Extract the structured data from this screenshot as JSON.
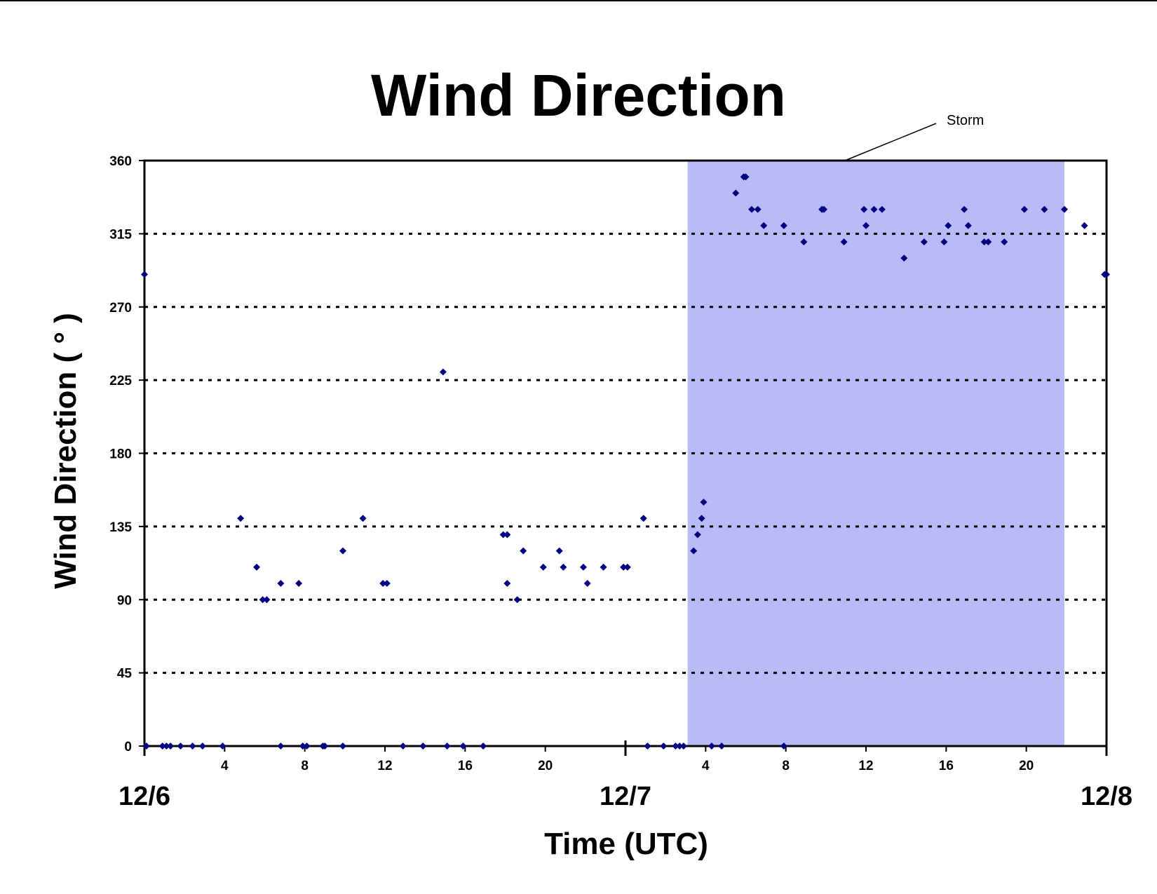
{
  "chart_data": {
    "type": "scatter",
    "title": "Wind Direction",
    "xlabel": "Time (UTC)",
    "ylabel": "Wind Direction ( ° )",
    "ylim": [
      0,
      360
    ],
    "yticks": [
      "0",
      "45",
      "90",
      "135",
      "180",
      "225",
      "270",
      "315",
      "360"
    ],
    "xlim_hours": [
      0,
      48
    ],
    "xticks": [
      {
        "hour": 4,
        "label": "4"
      },
      {
        "hour": 8,
        "label": "8"
      },
      {
        "hour": 12,
        "label": "12"
      },
      {
        "hour": 16,
        "label": "16"
      },
      {
        "hour": 20,
        "label": "20"
      },
      {
        "hour": 28,
        "label": "4"
      },
      {
        "hour": 32,
        "label": "8"
      },
      {
        "hour": 36,
        "label": "12"
      },
      {
        "hour": 40,
        "label": "16"
      },
      {
        "hour": 44,
        "label": "20"
      }
    ],
    "date_labels": [
      {
        "hour": 0,
        "label": "12/6"
      },
      {
        "hour": 24,
        "label": "12/7"
      },
      {
        "hour": 48,
        "label": "12/8"
      }
    ],
    "grid": "horizontal dotted",
    "marker_color": "#000080",
    "shaded_region": {
      "label": "Storm",
      "start_hour": 27.1,
      "end_hour": 45.9,
      "color": "#babaf8"
    },
    "points": [
      [
        0.0,
        290
      ],
      [
        0.1,
        0
      ],
      [
        0.9,
        0
      ],
      [
        1.1,
        0
      ],
      [
        1.3,
        0
      ],
      [
        1.8,
        0
      ],
      [
        2.4,
        0
      ],
      [
        2.9,
        0
      ],
      [
        3.9,
        0
      ],
      [
        4.8,
        140
      ],
      [
        5.6,
        110
      ],
      [
        5.9,
        90
      ],
      [
        6.1,
        90
      ],
      [
        6.8,
        0
      ],
      [
        6.8,
        100
      ],
      [
        7.7,
        100
      ],
      [
        7.9,
        0
      ],
      [
        8.1,
        0
      ],
      [
        8.9,
        0
      ],
      [
        9.0,
        0
      ],
      [
        9.9,
        120
      ],
      [
        9.9,
        0
      ],
      [
        10.9,
        140
      ],
      [
        11.9,
        100
      ],
      [
        12.1,
        100
      ],
      [
        12.9,
        0
      ],
      [
        13.9,
        0
      ],
      [
        14.9,
        230
      ],
      [
        15.1,
        0
      ],
      [
        15.9,
        0
      ],
      [
        16.9,
        0
      ],
      [
        17.9,
        130
      ],
      [
        18.1,
        130
      ],
      [
        18.1,
        100
      ],
      [
        18.6,
        90
      ],
      [
        18.9,
        120
      ],
      [
        19.9,
        110
      ],
      [
        20.7,
        120
      ],
      [
        20.9,
        110
      ],
      [
        21.9,
        110
      ],
      [
        22.1,
        100
      ],
      [
        22.9,
        110
      ],
      [
        23.9,
        110
      ],
      [
        24.1,
        110
      ],
      [
        24.9,
        140
      ],
      [
        25.1,
        0
      ],
      [
        25.9,
        0
      ],
      [
        26.5,
        0
      ],
      [
        26.7,
        0
      ],
      [
        26.9,
        0
      ],
      [
        27.4,
        120
      ],
      [
        27.6,
        130
      ],
      [
        27.8,
        140
      ],
      [
        27.9,
        150
      ],
      [
        28.3,
        0
      ],
      [
        28.8,
        0
      ],
      [
        29.5,
        340
      ],
      [
        29.9,
        350
      ],
      [
        30.0,
        350
      ],
      [
        30.3,
        330
      ],
      [
        30.6,
        330
      ],
      [
        30.9,
        320
      ],
      [
        31.9,
        320
      ],
      [
        31.9,
        0
      ],
      [
        32.9,
        310
      ],
      [
        33.8,
        330
      ],
      [
        33.9,
        330
      ],
      [
        34.9,
        310
      ],
      [
        35.9,
        330
      ],
      [
        36.0,
        320
      ],
      [
        36.4,
        330
      ],
      [
        36.8,
        330
      ],
      [
        37.9,
        300
      ],
      [
        38.9,
        310
      ],
      [
        39.9,
        310
      ],
      [
        40.1,
        320
      ],
      [
        40.9,
        330
      ],
      [
        41.1,
        320
      ],
      [
        41.9,
        310
      ],
      [
        42.1,
        310
      ],
      [
        42.9,
        310
      ],
      [
        43.9,
        330
      ],
      [
        44.9,
        330
      ],
      [
        45.9,
        330
      ],
      [
        46.9,
        320
      ],
      [
        47.9,
        290
      ],
      [
        48.0,
        290
      ]
    ]
  }
}
